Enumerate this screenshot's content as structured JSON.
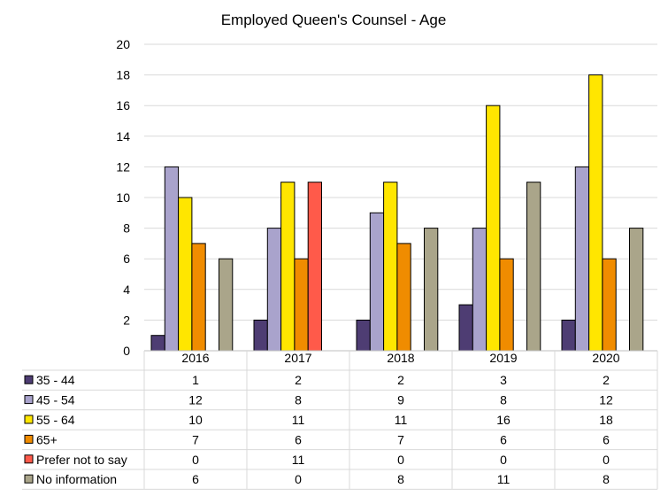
{
  "chart_data": {
    "type": "bar",
    "title": "Employed Queen's Counsel - Age",
    "categories": [
      "2016",
      "2017",
      "2018",
      "2019",
      "2020"
    ],
    "ylim": [
      0,
      20
    ],
    "yticks": [
      0,
      2,
      4,
      6,
      8,
      10,
      12,
      14,
      16,
      18,
      20
    ],
    "grid": true,
    "legend": "data-table-left",
    "series": [
      {
        "name": "35 - 44",
        "color": "#4e3d73",
        "values": [
          1,
          2,
          2,
          3,
          2
        ]
      },
      {
        "name": "45 - 54",
        "color": "#a9a3cc",
        "values": [
          12,
          8,
          9,
          8,
          12
        ]
      },
      {
        "name": "55 - 64",
        "color": "#ffe600",
        "values": [
          10,
          11,
          11,
          16,
          18
        ]
      },
      {
        "name": "65+",
        "color": "#f08c00",
        "values": [
          7,
          6,
          7,
          6,
          6
        ]
      },
      {
        "name": "Prefer not to say",
        "color": "#ff5a4a",
        "values": [
          0,
          11,
          0,
          0,
          0
        ]
      },
      {
        "name": "No information",
        "color": "#aaa58a",
        "values": [
          6,
          0,
          8,
          11,
          8
        ]
      }
    ]
  }
}
